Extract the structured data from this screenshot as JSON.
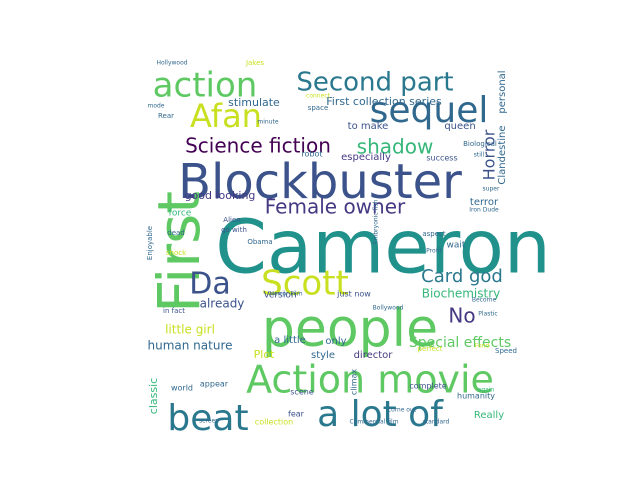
{
  "colors": {
    "background": "#ffffff",
    "palette": [
      "#440154",
      "#3b528b",
      "#21918c",
      "#5ec962",
      "#fde725",
      "#31688e",
      "#35b779",
      "#90d743",
      "#443983",
      "#2a788e"
    ]
  },
  "words": [
    {
      "text": "Cameron",
      "color": "#21918c"
    },
    {
      "text": "people",
      "color": "#5ec962"
    },
    {
      "text": "Blockbuster",
      "color": "#3b528b"
    },
    {
      "text": "First",
      "color": "#5ec962"
    },
    {
      "text": "Action movie",
      "color": "#5ec962"
    },
    {
      "text": "a lot of",
      "color": "#2a788e"
    },
    {
      "text": "beat",
      "color": "#2a788e"
    },
    {
      "text": "sequel",
      "color": "#31688e"
    },
    {
      "text": "action",
      "color": "#5ec962"
    },
    {
      "text": "Afan",
      "color": "#c8e020"
    },
    {
      "text": "Scott",
      "color": "#c8e020"
    },
    {
      "text": "Da",
      "color": "#3b528b"
    },
    {
      "text": "Second part",
      "color": "#2a788e"
    },
    {
      "text": "Science fiction",
      "color": "#440154"
    },
    {
      "text": "Female owner",
      "color": "#443983"
    },
    {
      "text": "shadow",
      "color": "#35b779"
    },
    {
      "text": "Card god",
      "color": "#2a788e"
    },
    {
      "text": "No",
      "color": "#443983"
    },
    {
      "text": "Special effects",
      "color": "#5ec962"
    },
    {
      "text": "Horror",
      "color": "#3b528b"
    },
    {
      "text": "Biochemistry",
      "color": "#35b779"
    },
    {
      "text": "First collection series",
      "color": "#31688e"
    },
    {
      "text": "human nature",
      "color": "#31688e"
    },
    {
      "text": "little girl",
      "color": "#c8e020"
    },
    {
      "text": "already",
      "color": "#3b528b"
    },
    {
      "text": "good looking",
      "color": "#443983"
    },
    {
      "text": "stimulate",
      "color": "#31688e"
    },
    {
      "text": "to make",
      "color": "#3b528b"
    },
    {
      "text": "queen",
      "color": "#3b528b"
    },
    {
      "text": "terror",
      "color": "#31688e"
    },
    {
      "text": "Plot",
      "color": "#c8e020"
    },
    {
      "text": "style",
      "color": "#31688e"
    },
    {
      "text": "director",
      "color": "#443983"
    },
    {
      "text": "a little",
      "color": "#31688e"
    },
    {
      "text": "only",
      "color": "#31688e"
    },
    {
      "text": "climax",
      "color": "#31688e"
    },
    {
      "text": "classic",
      "color": "#35b779"
    },
    {
      "text": "Really",
      "color": "#35b779"
    },
    {
      "text": "especially",
      "color": "#443983"
    },
    {
      "text": "robot",
      "color": "#31688e"
    },
    {
      "text": "success",
      "color": "#3b528b"
    },
    {
      "text": "Clandestine",
      "color": "#31688e"
    },
    {
      "text": "personal",
      "color": "#31688e"
    },
    {
      "text": "Version",
      "color": "#3b528b"
    },
    {
      "text": "just now",
      "color": "#3b528b"
    },
    {
      "text": "scene",
      "color": "#3b528b"
    },
    {
      "text": "world",
      "color": "#31688e"
    },
    {
      "text": "appear",
      "color": "#31688e"
    },
    {
      "text": "complete",
      "color": "#3b528b"
    },
    {
      "text": "humanity",
      "color": "#31688e"
    },
    {
      "text": "fear",
      "color": "#3b528b"
    },
    {
      "text": "collection",
      "color": "#c8e020"
    },
    {
      "text": "Commercial film",
      "color": "#31688e"
    },
    {
      "text": "standard",
      "color": "#31688e"
    },
    {
      "text": "force",
      "color": "#35b779"
    },
    {
      "text": "Enjoyable",
      "color": "#31688e"
    },
    {
      "text": "Alien",
      "color": "#3b528b"
    },
    {
      "text": "go with",
      "color": "#3b528b"
    },
    {
      "text": "in fact",
      "color": "#3b528b"
    },
    {
      "text": "perfect",
      "color": "#c8e020"
    },
    {
      "text": "Jakes",
      "color": "#c8e020"
    },
    {
      "text": "space",
      "color": "#31688e"
    },
    {
      "text": "Rear",
      "color": "#31688e"
    },
    {
      "text": "minute",
      "color": "#31688e"
    },
    {
      "text": "super",
      "color": "#31688e"
    },
    {
      "text": "Iron Dude",
      "color": "#31688e"
    },
    {
      "text": "Embryonic fish",
      "color": "#31688e"
    },
    {
      "text": "Profit",
      "color": "#31688e"
    },
    {
      "text": "Become",
      "color": "#31688e"
    },
    {
      "text": "Hollywood",
      "color": "#31688e"
    },
    {
      "text": "mode",
      "color": "#31688e"
    },
    {
      "text": "connect",
      "color": "#c8e020"
    },
    {
      "text": "shock",
      "color": "#c8e020"
    },
    {
      "text": "dead",
      "color": "#31688e"
    },
    {
      "text": "aspect",
      "color": "#31688e"
    },
    {
      "text": "Obama",
      "color": "#31688e"
    },
    {
      "text": "Horror Film",
      "color": "#31688e"
    },
    {
      "text": "Bollywood",
      "color": "#31688e"
    },
    {
      "text": "screen",
      "color": "#31688e"
    },
    {
      "text": "come out",
      "color": "#31688e"
    },
    {
      "text": "again",
      "color": "#35b779"
    },
    {
      "text": "Fond",
      "color": "#c8e020"
    },
    {
      "text": "Plastic",
      "color": "#31688e"
    },
    {
      "text": "Speed",
      "color": "#31688e"
    },
    {
      "text": "Biological",
      "color": "#31688e"
    },
    {
      "text": "still",
      "color": "#31688e"
    },
    {
      "text": "wait",
      "color": "#31688e"
    },
    {
      "text": "Size",
      "color": "#31688e"
    },
    {
      "text": "Under",
      "color": "#31688e"
    },
    {
      "text": "Pull",
      "color": "#31688e"
    },
    {
      "text": "era",
      "color": "#31688e"
    },
    {
      "text": "god",
      "color": "#31688e"
    },
    {
      "text": "now",
      "color": "#31688e"
    },
    {
      "text": "2",
      "color": "#31688e"
    }
  ]
}
